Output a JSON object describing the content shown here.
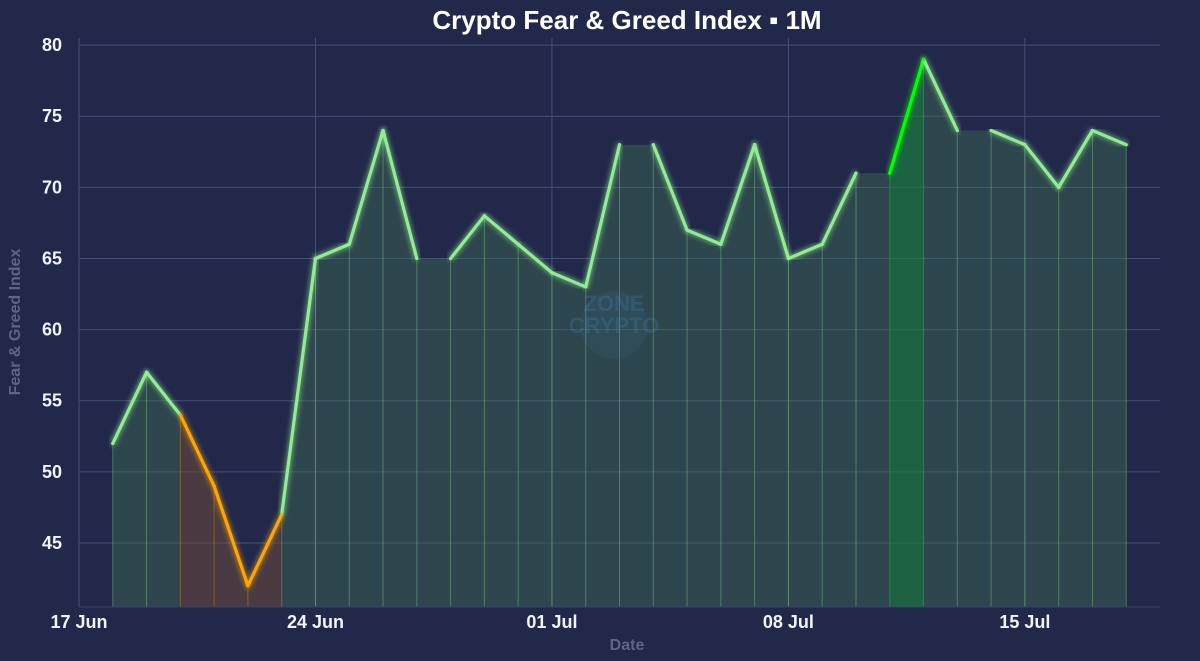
{
  "chart_data": {
    "type": "line",
    "title": "Crypto Fear & Greed Index ▪ 1M",
    "xlabel": "Date",
    "ylabel": "Fear & Greed Index",
    "x": [
      "18 Jun",
      "19 Jun",
      "20 Jun",
      "21 Jun",
      "22 Jun",
      "23 Jun",
      "24 Jun",
      "25 Jun",
      "26 Jun",
      "27 Jun",
      "28 Jun",
      "29 Jun",
      "30 Jun",
      "01 Jul",
      "02 Jul",
      "03 Jul",
      "04 Jul",
      "05 Jul",
      "06 Jul",
      "07 Jul",
      "08 Jul",
      "09 Jul",
      "10 Jul",
      "11 Jul",
      "12 Jul",
      "13 Jul",
      "14 Jul",
      "15 Jul",
      "16 Jul",
      "17 Jul",
      "18 Jul"
    ],
    "values": [
      52,
      57,
      54,
      49,
      42,
      47,
      65,
      66,
      74,
      65,
      65,
      68,
      66,
      64,
      63,
      73,
      73,
      67,
      66,
      73,
      65,
      66,
      71,
      71,
      79,
      74,
      74,
      73,
      70,
      74,
      73
    ],
    "x_ticks": [
      {
        "label": "17 Jun",
        "date": "17 Jun"
      },
      {
        "label": "24 Jun",
        "date": "24 Jun"
      },
      {
        "label": "01 Jul",
        "date": "01 Jul"
      },
      {
        "label": "08 Jul",
        "date": "08 Jul"
      },
      {
        "label": "15 Jul",
        "date": "15 Jul"
      }
    ],
    "y_ticks": [
      45,
      50,
      55,
      60,
      65,
      70,
      75,
      80
    ],
    "xlim": [
      "17 Jun",
      "19 Jul"
    ],
    "ylim": [
      40.5,
      80.5
    ],
    "grid": true,
    "colors": {
      "greed": "#90ee90",
      "fear": "#ffa500",
      "extreme_greed": "#00ff00",
      "greed_fill": "#3f6b52",
      "fear_fill": "#6b4a3a",
      "extreme_greed_fill": "#1c7a40"
    },
    "segment_rules": {
      "fear_below": 55,
      "extreme_greed_above": 75
    }
  },
  "watermark": {
    "line1": "ZONE",
    "line2": "CRYPTO"
  }
}
